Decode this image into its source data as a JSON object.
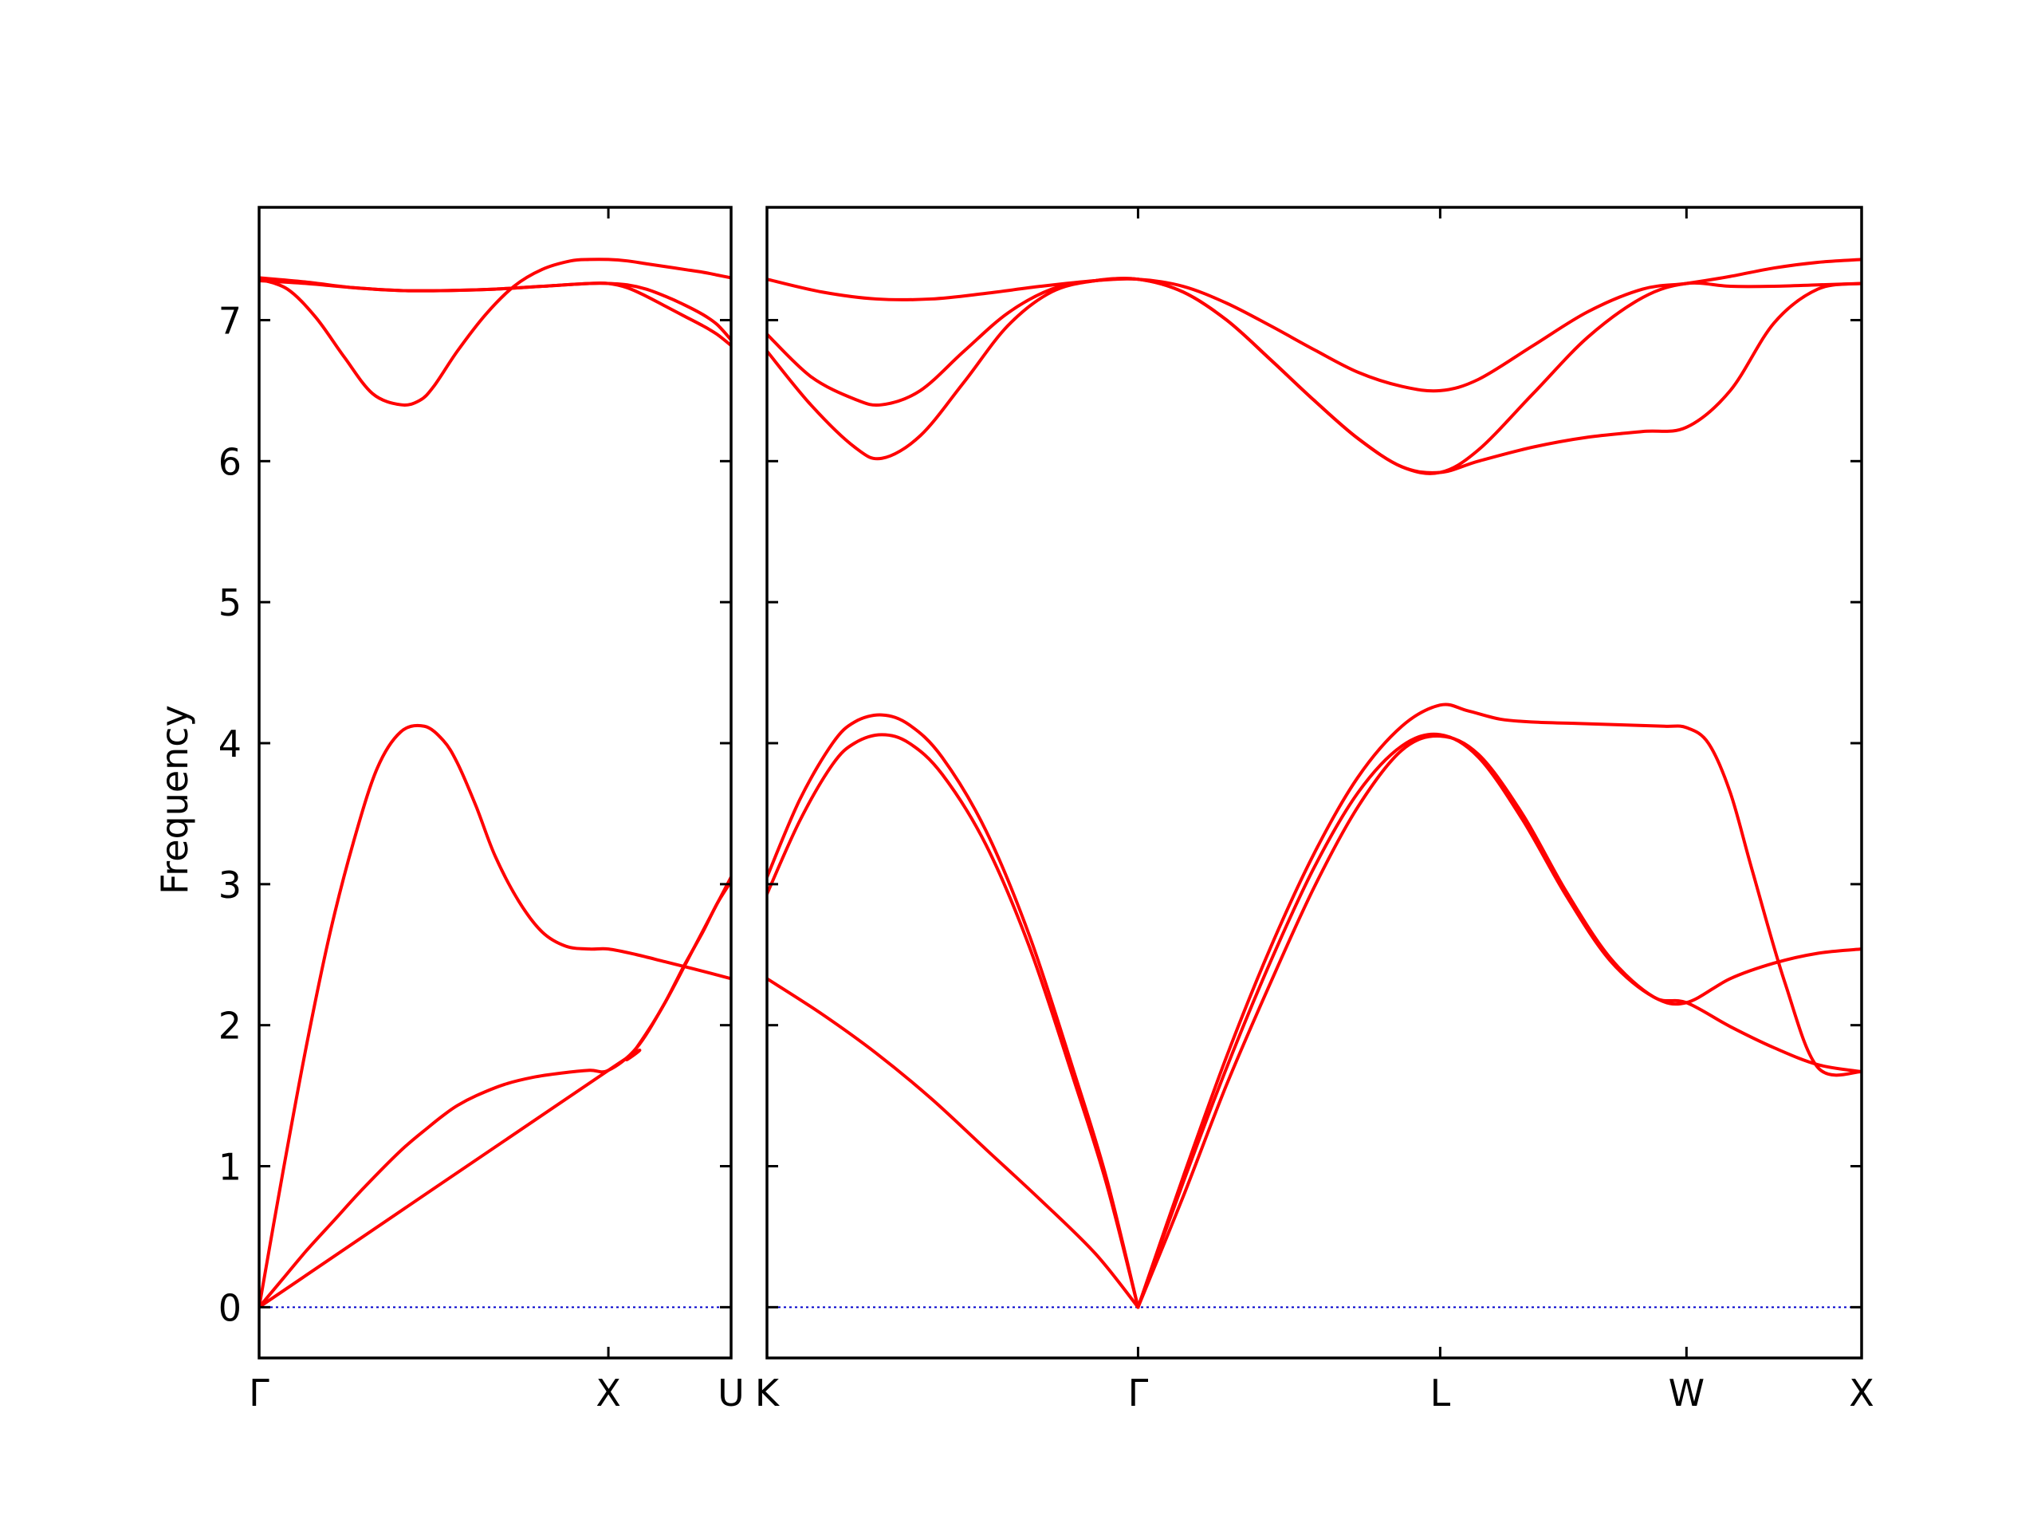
{
  "chart_data": {
    "type": "line",
    "ylabel": "Frequency",
    "ylim": [
      -0.36,
      7.8
    ],
    "yticks": [
      0,
      1,
      2,
      3,
      4,
      5,
      6,
      7
    ],
    "colors": {
      "bands": "#ff0000",
      "zero_line": "#0000cc",
      "frame": "#000000"
    },
    "grid": false,
    "panels": [
      {
        "name": "Γ-X-U",
        "xlim": [
          0,
          1
        ],
        "xticks": [
          {
            "pos": 0.0,
            "label": "Γ"
          },
          {
            "pos": 0.74,
            "label": "X"
          },
          {
            "pos": 1.0,
            "label": "U"
          }
        ],
        "bands": [
          {
            "x": [
              0,
              0.05,
              0.1,
              0.16,
              0.22,
              0.3,
              0.36,
              0.39,
              0.42,
              0.46,
              0.52,
              0.58,
              0.64,
              0.7,
              0.74,
              0.8,
              0.86,
              0.92,
              1.0
            ],
            "y": [
              0,
              0.2,
              0.4,
              0.62,
              0.84,
              1.11,
              1.28,
              1.36,
              1.43,
              1.5,
              1.58,
              1.63,
              1.66,
              1.68,
              1.68,
              1.84,
              2.16,
              2.54,
              3.05
            ]
          },
          {
            "x": [
              0,
              0.05,
              0.1,
              0.15,
              0.2,
              0.25,
              0.3,
              0.35,
              0.39,
              0.42,
              0.46,
              0.5,
              0.55,
              0.6,
              0.65,
              0.7,
              0.74,
              0.8,
              0.86,
              0.92,
              1.0
            ],
            "y": [
              0,
              0.95,
              1.85,
              2.65,
              3.3,
              3.82,
              4.08,
              4.12,
              4.02,
              3.86,
              3.55,
              3.2,
              2.88,
              2.66,
              2.56,
              2.54,
              2.54,
              2.5,
              2.45,
              2.4,
              2.33
            ]
          },
          {
            "x": [
              0,
              0.74,
              0.78,
              0.82,
              0.86,
              0.9,
              0.94,
              0.97,
              1.0
            ],
            "y": [
              0,
              1.68,
              1.76,
              1.94,
              2.16,
              2.42,
              2.66,
              2.86,
              3.02
            ]
          },
          {
            "x": [
              0,
              0.06,
              0.12,
              0.18,
              0.24,
              0.3,
              0.34,
              0.37,
              0.42,
              0.48,
              0.54,
              0.6,
              0.66,
              0.7,
              0.74,
              0.78,
              0.82,
              0.86,
              0.9,
              0.94,
              0.97,
              1.0
            ],
            "y": [
              7.29,
              7.22,
              7.02,
              6.74,
              6.48,
              6.4,
              6.43,
              6.53,
              6.78,
              7.04,
              7.24,
              7.36,
              7.42,
              7.43,
              7.43,
              7.42,
              7.4,
              7.38,
              7.36,
              7.34,
              7.32,
              7.3
            ]
          },
          {
            "x": [
              0,
              0.1,
              0.2,
              0.3,
              0.4,
              0.5,
              0.6,
              0.7,
              0.74,
              0.78,
              0.82,
              0.86,
              0.9,
              0.94,
              0.97,
              1.0
            ],
            "y": [
              7.3,
              7.27,
              7.23,
              7.21,
              7.21,
              7.22,
              7.24,
              7.26,
              7.26,
              7.23,
              7.17,
              7.1,
              7.03,
              6.96,
              6.9,
              6.82
            ]
          },
          {
            "x": [
              0,
              0.1,
              0.2,
              0.3,
              0.4,
              0.5,
              0.6,
              0.7,
              0.74,
              0.78,
              0.82,
              0.86,
              0.9,
              0.94,
              0.97,
              1.0
            ],
            "y": [
              7.28,
              7.26,
              7.23,
              7.21,
              7.21,
              7.22,
              7.24,
              7.26,
              7.26,
              7.25,
              7.22,
              7.17,
              7.11,
              7.04,
              6.97,
              6.86
            ]
          }
        ]
      },
      {
        "name": "K-Γ-L-W-X",
        "xlim": [
          0,
          1
        ],
        "xticks": [
          {
            "pos": 0.0,
            "label": "K"
          },
          {
            "pos": 0.339,
            "label": "Γ"
          },
          {
            "pos": 0.615,
            "label": "L"
          },
          {
            "pos": 0.84,
            "label": "W"
          },
          {
            "pos": 1.0,
            "label": "X"
          }
        ],
        "bands": [
          {
            "x": [
              0,
              0.05,
              0.1,
              0.15,
              0.2,
              0.25,
              0.3,
              0.339
            ],
            "y": [
              2.33,
              2.08,
              1.8,
              1.48,
              1.12,
              0.76,
              0.38,
              0
            ]
          },
          {
            "x": [
              0,
              0.03,
              0.06,
              0.08,
              0.105,
              0.13,
              0.16,
              0.2,
              0.24,
              0.28,
              0.31,
              0.339
            ],
            "y": [
              2.93,
              3.45,
              3.85,
              4.0,
              4.06,
              4.0,
              3.78,
              3.28,
              2.55,
              1.62,
              0.88,
              0
            ]
          },
          {
            "x": [
              0,
              0.03,
              0.06,
              0.08,
              0.105,
              0.13,
              0.16,
              0.2,
              0.24,
              0.28,
              0.31,
              0.339
            ],
            "y": [
              3.05,
              3.6,
              4.0,
              4.15,
              4.2,
              4.13,
              3.9,
              3.38,
              2.63,
              1.68,
              0.92,
              0
            ]
          },
          {
            "x": [
              0.339,
              0.38,
              0.42,
              0.46,
              0.5,
              0.54,
              0.58,
              0.615,
              0.65,
              0.69,
              0.73,
              0.77,
              0.81,
              0.84,
              0.88,
              0.92,
              0.96,
              1.0
            ],
            "y": [
              0,
              0.78,
              1.58,
              2.3,
              2.98,
              3.55,
              3.95,
              4.05,
              3.92,
              3.5,
              2.95,
              2.48,
              2.2,
              2.16,
              1.99,
              1.84,
              1.72,
              1.67
            ]
          },
          {
            "x": [
              0.339,
              0.38,
              0.42,
              0.46,
              0.5,
              0.54,
              0.58,
              0.615,
              0.65,
              0.69,
              0.73,
              0.77,
              0.81,
              0.84,
              0.88,
              0.92,
              0.96,
              1.0
            ],
            "y": [
              0,
              0.88,
              1.7,
              2.45,
              3.12,
              3.65,
              3.98,
              4.06,
              3.9,
              3.46,
              2.92,
              2.46,
              2.2,
              2.16,
              2.33,
              2.44,
              2.51,
              2.54
            ]
          },
          {
            "x": [
              0.339,
              0.38,
              0.42,
              0.46,
              0.5,
              0.54,
              0.58,
              0.615,
              0.64,
              0.67,
              0.7,
              0.74,
              0.78,
              0.82,
              0.84,
              0.86,
              0.88,
              0.9,
              0.93,
              0.96,
              1.0
            ],
            "y": [
              0,
              0.92,
              1.78,
              2.55,
              3.22,
              3.76,
              4.12,
              4.27,
              4.23,
              4.17,
              4.15,
              4.14,
              4.13,
              4.12,
              4.11,
              4.0,
              3.65,
              3.1,
              2.3,
              1.7,
              1.67
            ]
          },
          {
            "x": [
              0,
              0.04,
              0.08,
              0.105,
              0.14,
              0.18,
              0.22,
              0.26,
              0.3,
              0.339,
              0.38,
              0.42,
              0.46,
              0.5,
              0.54,
              0.58,
              0.615,
              0.65,
              0.7,
              0.75,
              0.8,
              0.84,
              0.88,
              0.92,
              0.96,
              1.0
            ],
            "y": [
              6.78,
              6.4,
              6.1,
              6.02,
              6.18,
              6.56,
              6.96,
              7.2,
              7.28,
              7.29,
              7.2,
              7.0,
              6.72,
              6.43,
              6.16,
              5.96,
              5.92,
              6.0,
              6.1,
              6.17,
              6.21,
              6.24,
              6.5,
              6.98,
              7.22,
              7.26
            ]
          },
          {
            "x": [
              0,
              0.04,
              0.08,
              0.105,
              0.14,
              0.18,
              0.22,
              0.26,
              0.3,
              0.339,
              0.38,
              0.42,
              0.46,
              0.5,
              0.54,
              0.58,
              0.615,
              0.65,
              0.7,
              0.75,
              0.8,
              0.84,
              0.88,
              0.92,
              0.96,
              1.0
            ],
            "y": [
              6.9,
              6.6,
              6.44,
              6.4,
              6.5,
              6.78,
              7.05,
              7.22,
              7.28,
              7.29,
              7.2,
              7.0,
              6.72,
              6.43,
              6.16,
              5.96,
              5.92,
              6.08,
              6.48,
              6.88,
              7.16,
              7.26,
              7.24,
              7.24,
              7.25,
              7.26
            ]
          },
          {
            "x": [
              0,
              0.05,
              0.1,
              0.15,
              0.2,
              0.25,
              0.3,
              0.339,
              0.38,
              0.42,
              0.46,
              0.5,
              0.54,
              0.58,
              0.615,
              0.65,
              0.7,
              0.75,
              0.8,
              0.84,
              0.88,
              0.92,
              0.96,
              1.0
            ],
            "y": [
              7.29,
              7.2,
              7.15,
              7.15,
              7.19,
              7.24,
              7.28,
              7.29,
              7.24,
              7.12,
              6.96,
              6.79,
              6.63,
              6.53,
              6.5,
              6.58,
              6.82,
              7.06,
              7.22,
              7.26,
              7.31,
              7.37,
              7.41,
              7.43
            ]
          }
        ]
      }
    ]
  }
}
